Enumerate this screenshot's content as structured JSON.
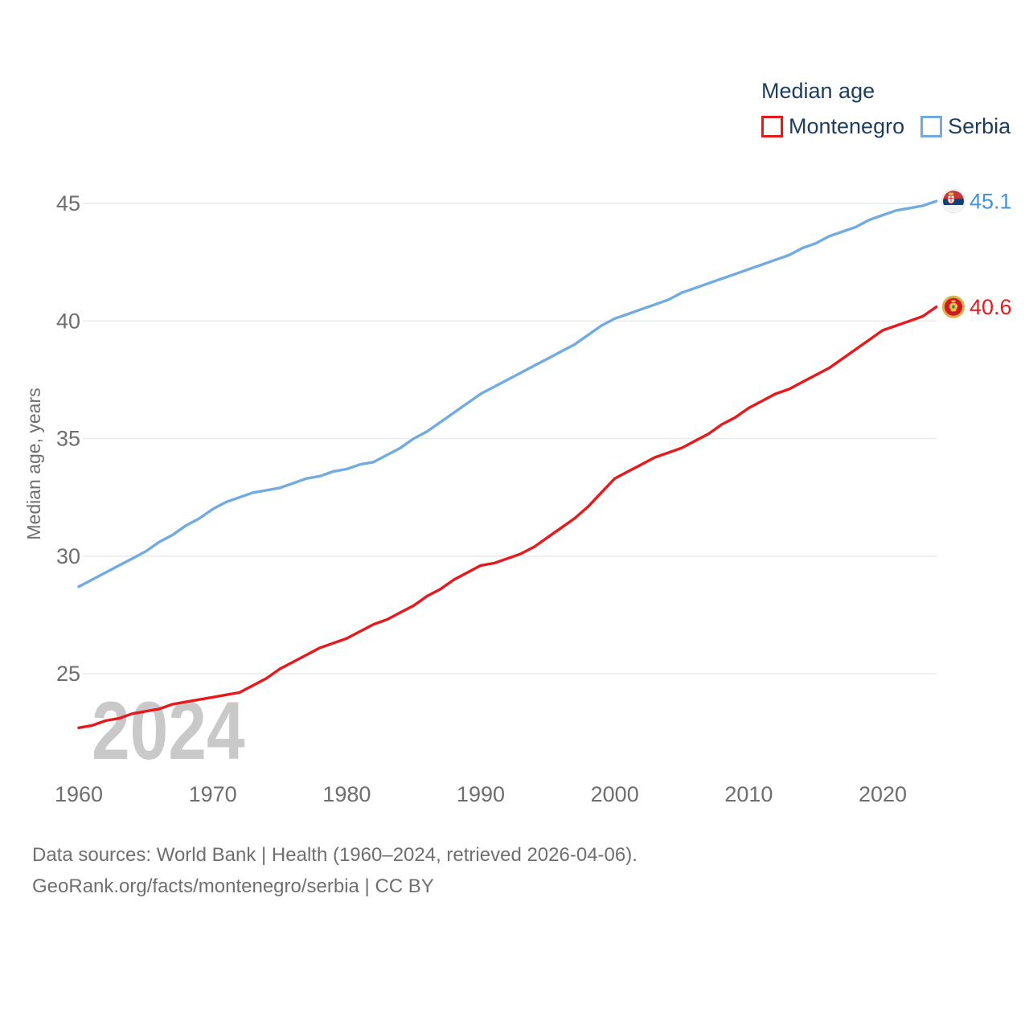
{
  "legend": {
    "title": "Median age",
    "items": [
      {
        "label": "Montenegro",
        "color": "#e8191d"
      },
      {
        "label": "Serbia",
        "color": "#72abe0"
      }
    ]
  },
  "watermark": "2024",
  "footer": {
    "line1": "Data sources: World Bank | Health (1960–2024, retrieved 2026-04-06).",
    "line2": "GeoRank.org/facts/montenegro/serbia | CC BY"
  },
  "chart_data": {
    "type": "line",
    "title": "Median age",
    "xlabel": "",
    "ylabel": "Median age, years",
    "x_range": [
      1960,
      2024
    ],
    "ylim": [
      22,
      46
    ],
    "grid": "horizontal",
    "legend_position": "top-right",
    "yticks": [
      25,
      30,
      35,
      40,
      45
    ],
    "xticks": [
      1960,
      1970,
      1980,
      1990,
      2000,
      2010,
      2020
    ],
    "years": [
      1960,
      1961,
      1962,
      1963,
      1964,
      1965,
      1966,
      1967,
      1968,
      1969,
      1970,
      1971,
      1972,
      1973,
      1974,
      1975,
      1976,
      1977,
      1978,
      1979,
      1980,
      1981,
      1982,
      1983,
      1984,
      1985,
      1986,
      1987,
      1988,
      1989,
      1990,
      1991,
      1992,
      1993,
      1994,
      1995,
      1996,
      1997,
      1998,
      1999,
      2000,
      2001,
      2002,
      2003,
      2004,
      2005,
      2006,
      2007,
      2008,
      2009,
      2010,
      2011,
      2012,
      2013,
      2014,
      2015,
      2016,
      2017,
      2018,
      2019,
      2020,
      2021,
      2022,
      2023,
      2024
    ],
    "series": [
      {
        "name": "Serbia",
        "color": "#72abe0",
        "label_color": "#4595d8",
        "end_label": "45.1",
        "end_value": 45.1,
        "values": [
          28.7,
          29.0,
          29.3,
          29.6,
          29.9,
          30.2,
          30.6,
          30.9,
          31.3,
          31.6,
          32.0,
          32.3,
          32.5,
          32.7,
          32.8,
          32.9,
          33.1,
          33.3,
          33.4,
          33.6,
          33.7,
          33.9,
          34.0,
          34.3,
          34.6,
          35.0,
          35.3,
          35.7,
          36.1,
          36.5,
          36.9,
          37.2,
          37.5,
          37.8,
          38.1,
          38.4,
          38.7,
          39.0,
          39.4,
          39.8,
          40.1,
          40.3,
          40.5,
          40.7,
          40.9,
          41.2,
          41.4,
          41.6,
          41.8,
          42.0,
          42.2,
          42.4,
          42.6,
          42.8,
          43.1,
          43.3,
          43.6,
          43.8,
          44.0,
          44.3,
          44.5,
          44.7,
          44.8,
          44.9,
          45.1
        ]
      },
      {
        "name": "Montenegro",
        "color": "#e8191d",
        "label_color": "#e8191d",
        "end_label": "40.6",
        "end_value": 40.6,
        "values": [
          22.7,
          22.8,
          23.0,
          23.1,
          23.3,
          23.4,
          23.5,
          23.7,
          23.8,
          23.9,
          24.0,
          24.1,
          24.2,
          24.5,
          24.8,
          25.2,
          25.5,
          25.8,
          26.1,
          26.3,
          26.5,
          26.8,
          27.1,
          27.3,
          27.6,
          27.9,
          28.3,
          28.6,
          29.0,
          29.3,
          29.6,
          29.7,
          29.9,
          30.1,
          30.4,
          30.8,
          31.2,
          31.6,
          32.1,
          32.7,
          33.3,
          33.6,
          33.9,
          34.2,
          34.4,
          34.6,
          34.9,
          35.2,
          35.6,
          35.9,
          36.3,
          36.6,
          36.9,
          37.1,
          37.4,
          37.7,
          38.0,
          38.4,
          38.8,
          39.2,
          39.6,
          39.8,
          40.0,
          40.2,
          40.6
        ]
      }
    ]
  }
}
